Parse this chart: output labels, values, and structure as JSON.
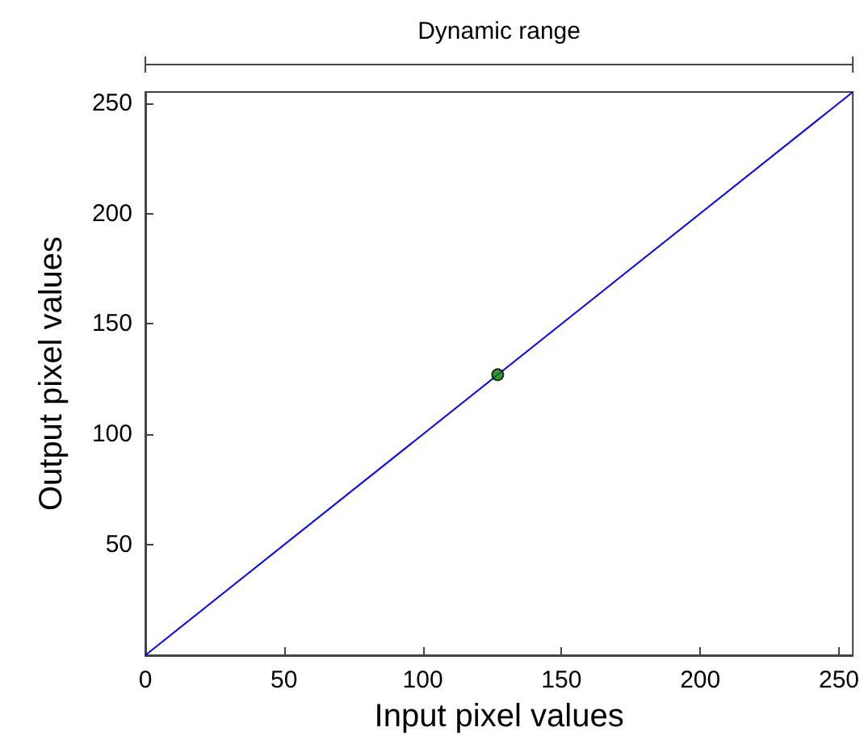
{
  "chart_data": {
    "type": "line",
    "xlabel": "Input pixel values",
    "ylabel": "Output pixel values",
    "annotations": [
      "Dynamic range"
    ],
    "xlim": [
      0,
      255
    ],
    "ylim": [
      0,
      255
    ],
    "xticks": [
      0,
      50,
      100,
      150,
      200,
      250
    ],
    "yticks": [
      50,
      100,
      150,
      200,
      250
    ],
    "grid": false,
    "marker": "none",
    "series": [
      {
        "x": [
          0,
          255
        ],
        "values": [
          0,
          255
        ],
        "color": "#0000ff"
      },
      {
        "type": "scatter",
        "x": [
          127
        ],
        "values": [
          127
        ],
        "color": "#008000",
        "marker": "circle"
      }
    ]
  }
}
